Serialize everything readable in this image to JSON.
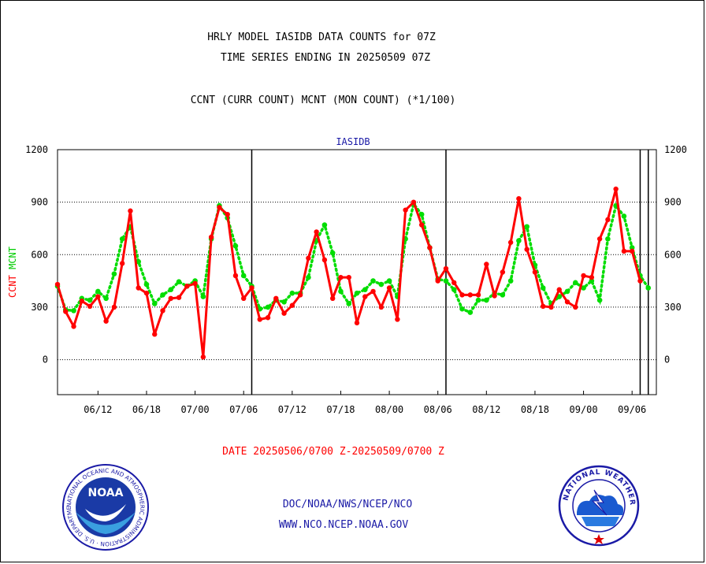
{
  "header": {
    "title_line1": "HRLY MODEL IASIDB DATA COUNTS for 07Z",
    "title_line2": "TIME SERIES ENDING IN 20250509 07Z",
    "legend_text": "CCNT (CURR COUNT) MCNT (MON COUNT) (*1/100)"
  },
  "chart_data": {
    "type": "line",
    "title": "IASIDB",
    "ylabel_ccnt": "CCNT",
    "ylabel_mcnt": "MCNT",
    "xlabel": "DATE 20250506/0700 Z-20250509/0700 Z",
    "ylim": [
      -200,
      1200
    ],
    "yticks": [
      0,
      300,
      600,
      900,
      1200
    ],
    "x_range": [
      0,
      74
    ],
    "x_ticks": [
      {
        "label": "06/12",
        "x": 5
      },
      {
        "label": "06/18",
        "x": 11
      },
      {
        "label": "07/00",
        "x": 17
      },
      {
        "label": "07/06",
        "x": 23
      },
      {
        "label": "07/12",
        "x": 29
      },
      {
        "label": "07/18",
        "x": 35
      },
      {
        "label": "08/00",
        "x": 41
      },
      {
        "label": "08/06",
        "x": 47
      },
      {
        "label": "08/12",
        "x": 53
      },
      {
        "label": "08/18",
        "x": 59
      },
      {
        "label": "09/00",
        "x": 65
      },
      {
        "label": "09/06",
        "x": 71
      }
    ],
    "day_boundaries": [
      24,
      48,
      72
    ],
    "grid": true,
    "series": [
      {
        "name": "CCNT",
        "color": "#ff0000",
        "style": "solid",
        "values": [
          430,
          275,
          190,
          335,
          305,
          360,
          220,
          300,
          550,
          850,
          410,
          380,
          145,
          280,
          350,
          355,
          420,
          435,
          15,
          700,
          870,
          830,
          480,
          350,
          410,
          230,
          240,
          350,
          265,
          310,
          370,
          580,
          730,
          570,
          350,
          470,
          470,
          210,
          360,
          390,
          300,
          410,
          230,
          855,
          900,
          770,
          640,
          450,
          520,
          440,
          370,
          370,
          370,
          545,
          365,
          500,
          670,
          920,
          630,
          500,
          305,
          300,
          400,
          330,
          300,
          480,
          470,
          690,
          800,
          975,
          620,
          620,
          450
        ]
      },
      {
        "name": "MCNT",
        "color": "#00dd00",
        "style": "dotted",
        "values": [
          420,
          285,
          280,
          350,
          340,
          390,
          350,
          490,
          690,
          760,
          560,
          430,
          320,
          370,
          400,
          445,
          420,
          450,
          360,
          690,
          880,
          810,
          650,
          480,
          420,
          290,
          300,
          340,
          330,
          380,
          380,
          470,
          680,
          770,
          610,
          390,
          320,
          380,
          400,
          450,
          430,
          450,
          360,
          690,
          890,
          830,
          640,
          460,
          450,
          400,
          290,
          270,
          340,
          340,
          380,
          370,
          450,
          680,
          760,
          540,
          410,
          320,
          360,
          390,
          440,
          410,
          450,
          340,
          690,
          880,
          820,
          640,
          480,
          410
        ]
      }
    ]
  },
  "footer": {
    "link1": "DOC/NOAA/NWS/NCEP/NCO",
    "link2": "WWW.NCO.NCEP.NOAA.GOV",
    "noaa_logo_text": "NOAA",
    "noaa_ring_text": "NATIONAL OCEANIC AND ATMOSPHERIC ADMINISTRATION · U.S. DEPARTMENT OF COMMERCE ·",
    "nws_ring_text": "NATIONAL WEATHER SERVICE"
  }
}
